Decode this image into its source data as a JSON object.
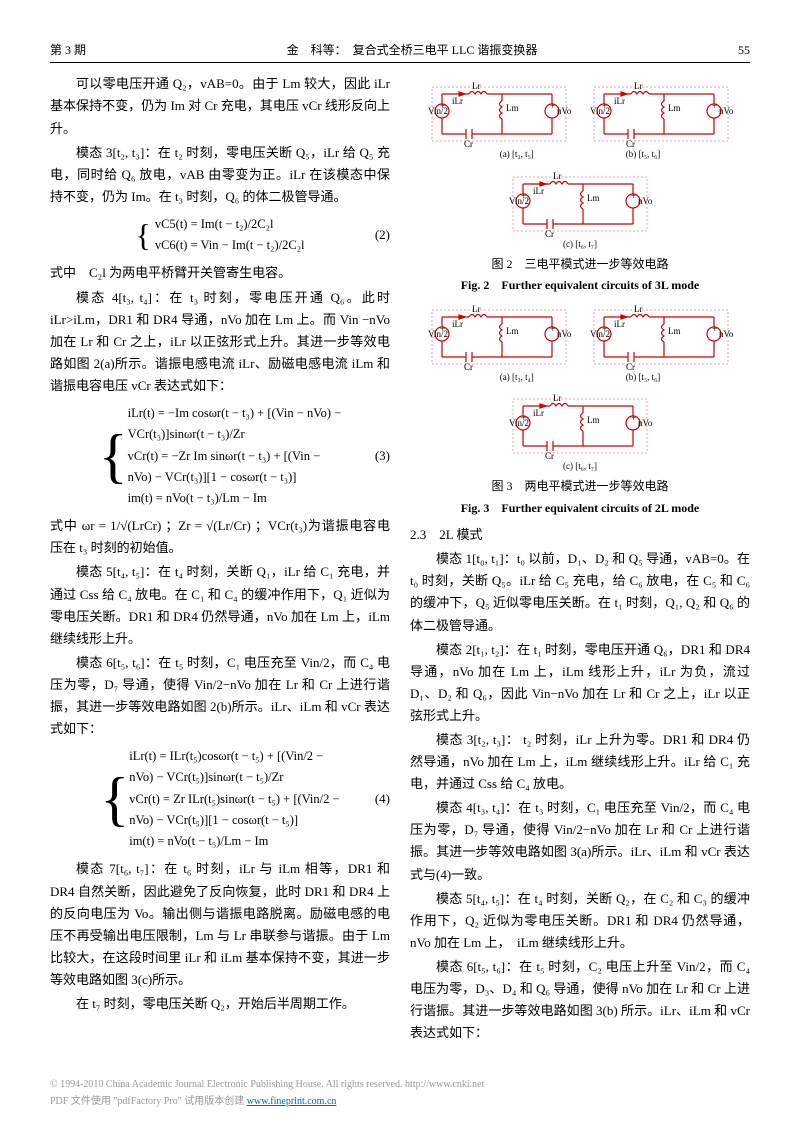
{
  "header": {
    "issue": "第 3 期",
    "title": "金　科等：　复合式全桥三电平 LLC 谐振变换器",
    "page": "55"
  },
  "left": {
    "p1": "可以零电压开通 Q₂，vAB=0。由于 Lm 较大，因此 iLr 基本保持不变，仍为 Im 对 Cr 充电，其电压 vCr 线形反向上升。",
    "p2": "模态 3[t₂, t₃]：在 t₂ 时刻，零电压关断 Q₅，iLr 给 Q₅ 充电，同时给 Q₆ 放电，vAB 由零变为正。iLr 在该模态中保持不变，仍为 Im。在 t₃ 时刻，Q₆ 的体二极管导通。",
    "eq2a": "vC5(t) = Im(t − t₂)/2C₂l",
    "eq2b": "vC6(t) = Vin − Im(t − t₂)/2C₂l",
    "eq2num": "(2)",
    "p3": "式中　C₂l 为两电平桥臂开关管寄生电容。",
    "p4": "模态 4[t₃, t₄]：在 t₃ 时刻，零电压开通 Q₆。此时 iLr>iLm，DR1 和 DR4 导通，nVo 加在 Lm 上。而 Vin −nVo 加在 Lr 和 Cr 之上，iLr 以正弦形式上升。其进一步等效电路如图 2(a)所示。谐振电感电流 iLr、励磁电感电流 iLm 和谐振电容电压 vCr 表达式如下：",
    "eq3a": "iLr(t) = −Im cosωr(t − t₃) + [(Vin − nVo) −",
    "eq3a2": "      VCr(t₃)]sinωr(t − t₃)/Zr",
    "eq3b": "vCr(t) = −Zr Im sinωr(t − t₃) +  [(Vin −",
    "eq3b2": "      nVo) − VCr(t₃)][1 − cosωr(t − t₃)]",
    "eq3c": "im(t) = nVo(t − t₃)/Lm − Im",
    "eq3num": "(3)",
    "p5": "式中 ωr = 1/√(LrCr) ；Zr = √(Lr/Cr) ；VCr(t₃)为谐振电容电压在 t₃ 时刻的初始值。",
    "p6": "模态 5[t₄, t₅]：在 t₄ 时刻，关断 Q₁，iLr 给 C₁ 充电，并通过 Css 给 C₄ 放电。在 C₁ 和 C₄ 的缓冲作用下，Q₁ 近似为零电压关断。DR1 和 DR4 仍然导通，nVo 加在 Lm 上，iLm 继续线形上升。",
    "p7": "模态 6[t₅, t₆]：在 t₅ 时刻，C₁ 电压充至 Vin/2，而 C₄ 电压为零，D₇ 导通，使得 Vin/2−nVo 加在 Lr 和 Cr 上进行谐振，其进一步等效电路如图 2(b)所示。iLr、iLm 和 vCr 表达式如下：",
    "eq4a": "iLr(t) = ILr(t₅)cosωr(t − t₅) + [(Vin/2 −",
    "eq4a2": "      nVo) − VCr(t₅)]sinωr(t − t₅)/Zr",
    "eq4b": "vCr(t) = Zr ILr(t₅)sinωr(t − t₅) + [(Vin/2 −",
    "eq4b2": "      nVo) − VCr(t₅)][1 − cosωr(t − t₅)]",
    "eq4c": "im(t) = nVo(t − t₅)/Lm − Im",
    "eq4num": "(4)",
    "p8": "模态 7[t₆, t₇]：在 t₆ 时刻，iLr 与 iLm 相等，DR1 和 DR4 自然关断，因此避免了反向恢复，此时 DR1 和 DR4 上的反向电压为 Vo。输出侧与谐振电路脱离。励磁电感的电压不再受输出电压限制，Lm 与 Lr 串联参与谐振。由于 Lm 比较大，在这段时间里 iLr 和 iLm 基本保持不变，其进一步等效电路如图 3(c)所示。",
    "p9": "在 t₇ 时刻，零电压关断 Q₂，开始后半周期工作。"
  },
  "fig2": {
    "subs": {
      "a": "(a) [t₃, t₅]",
      "b": "(b) [t₅, t₆]",
      "c": "(c) [t₆, t₇]"
    },
    "cap_cn": "图 2　三电平模式进一步等效电路",
    "cap_en": "Fig. 2　Further equivalent circuits of 3L mode"
  },
  "fig3": {
    "subs": {
      "a": "(a) [t₃, t₄]",
      "b": "(b) [t₅, t₆]",
      "c": "(c) [t₆, t₇]"
    },
    "cap_cn": "图 3　两电平模式进一步等效电路",
    "cap_en": "Fig. 3　Further equivalent circuits of 2L mode"
  },
  "right": {
    "sec": "2.3　2L 模式",
    "p1": "模态 1[t₀, t₁]：t₀ 以前，D₁、D₂ 和 Q₅ 导通，vAB=0。在 t₀ 时刻，关断 Q₅。iLr 给 C₅ 充电，给 C₆ 放电，在 C₅ 和 C₆ 的缓冲下，Q₅ 近似零电压关断。在 t₁ 时刻，Q₁, Q₂ 和 Q₆ 的体二极管导通。",
    "p2": "模态 2[t₁, t₂]：在 t₁ 时刻，零电压开通 Q₆，DR1 和 DR4 导通，nVo 加在 Lm 上，iLm 线形上升，iLr 为负，流过 D₁、D₂ 和 Q₆，因此 Vin−nVo 加在 Lr 和 Cr 之上，iLr 以正弦形式上升。",
    "p3": "模态 3[t₂, t₃]： t₂ 时刻，iLr 上升为零。DR1 和 DR4 仍然导通，nVo 加在 Lm 上，iLm 继续线形上升。iLr 给 C₁ 充电，并通过 Css 给 C₄ 放电。",
    "p4": "模态 4[t₃, t₄]：在 t₃ 时刻，C₁ 电压充至 Vin/2，而 C₄ 电压为零，D₇ 导通，使得 Vin/2−nVo 加在 Lr 和 Cr 上进行谐振。其进一步等效电路如图 3(a)所示。iLr、iLm 和 vCr 表达式与(4)一致。",
    "p5": "模态 5[t₄, t₅]：在 t₄ 时刻，关断 Q₂，在 C₂ 和 C₃ 的缓冲作用下，Q₂ 近似为零电压关断。DR1 和 DR4 仍然导通，nVo 加在 Lm 上，　iLm 继续线形上升。",
    "p6": "模态 6[t₅, t₆]：在 t₅ 时刻，C₂ 电压上升至 Vin/2，而 C₄ 电压为零，D₃、D₄ 和 Q₆ 导通，使得 nVo 加在 Lr 和 Cr 上进行谐振。其进一步等效电路如图 3(b) 所示。iLr、iLm 和 vCr 表达式如下："
  },
  "circuit": {
    "colors": {
      "stroke": "#d00000",
      "fill": "none",
      "text": "#000"
    },
    "labels": {
      "Vin": "Vin",
      "Vin2": "Vin/2",
      "Lr": "Lr",
      "Lm": "Lm",
      "Cr": "Cr",
      "nVo": "nVo",
      "iLr": "iLr",
      "iLm": "iLm"
    },
    "w": 150,
    "h": 70
  },
  "footer": {
    "left": "© 1994-2010 China Academic Journal Electronic Publishing House. All rights reserved.    http://www.cnki.net",
    "pdf": "PDF 文件使用 \"pdfFactory Pro\" 试用版本创建 ",
    "url": "www.fineprint.com.cn"
  }
}
